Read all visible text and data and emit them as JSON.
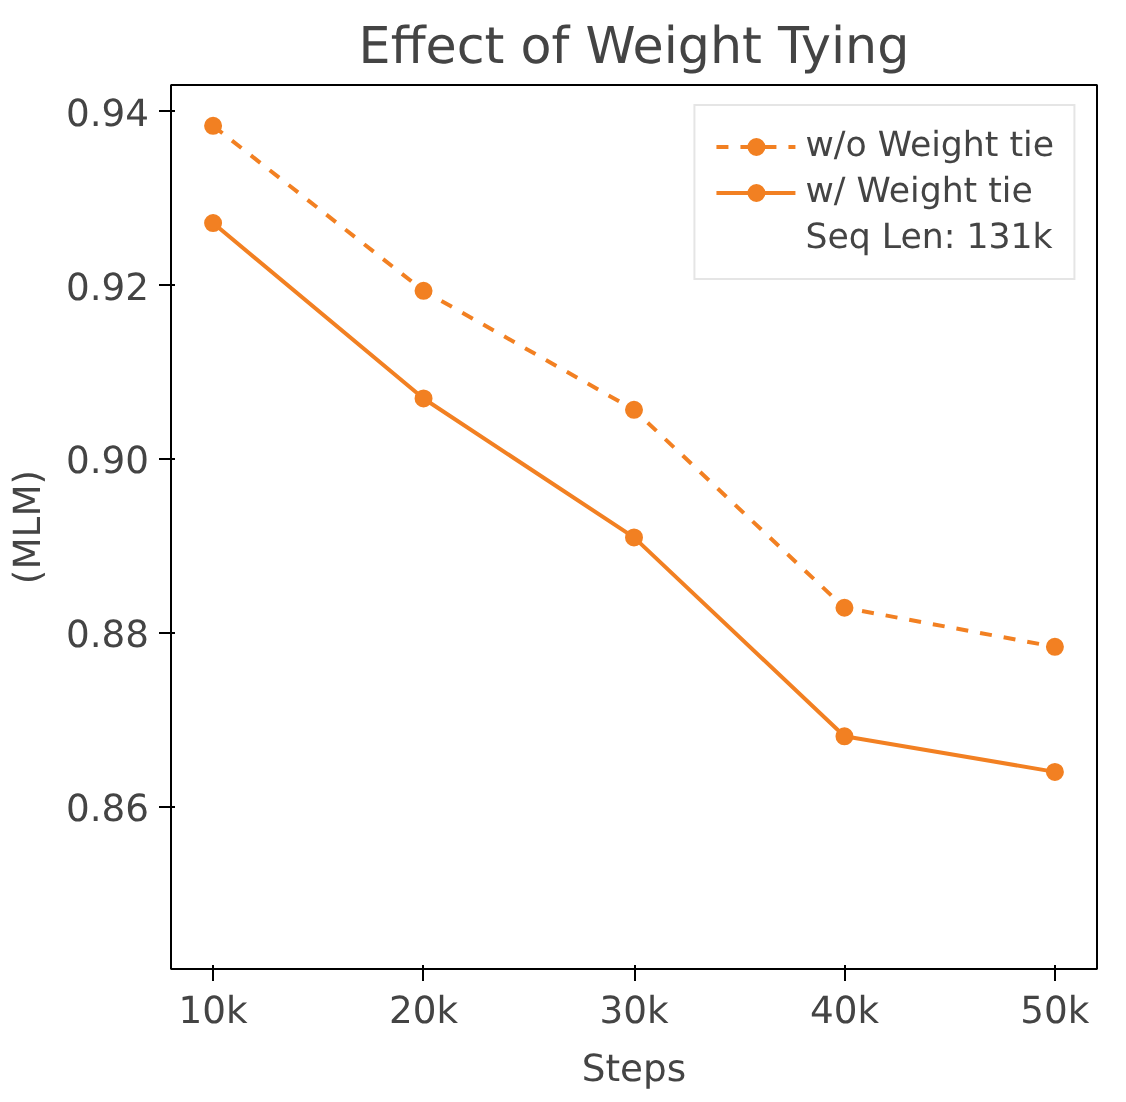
{
  "chart_data": {
    "type": "line",
    "title": "Effect of Weight Tying",
    "xlabel": "Steps",
    "ylabel": "(MLM)",
    "x": [
      10000,
      20000,
      30000,
      40000,
      50000
    ],
    "series": [
      {
        "name": "w/o Weight tie",
        "color": "#f28022",
        "values": [
          0.9384,
          0.9194,
          0.9057,
          0.8829,
          0.8784
        ],
        "line_style": "dashed"
      },
      {
        "name": "w/ Weight tie",
        "color": "#f28022",
        "values": [
          0.9272,
          0.907,
          0.891,
          0.8681,
          0.864
        ],
        "line_style": "solid"
      }
    ],
    "annotations": [
      "Seq Len: 131k"
    ],
    "xlim": [
      8000,
      52000
    ],
    "ylim": [
      0.8413,
      0.9431
    ],
    "xticks": [
      {
        "value": 10000,
        "label": "10k"
      },
      {
        "value": 20000,
        "label": "20k"
      },
      {
        "value": 30000,
        "label": "30k"
      },
      {
        "value": 40000,
        "label": "40k"
      },
      {
        "value": 50000,
        "label": "50k"
      }
    ],
    "yticks": [
      {
        "value": 0.86,
        "label": "0.86"
      },
      {
        "value": 0.88,
        "label": "0.88"
      },
      {
        "value": 0.9,
        "label": "0.90"
      },
      {
        "value": 0.92,
        "label": "0.92"
      },
      {
        "value": 0.94,
        "label": "0.94"
      }
    ],
    "marker": "circle",
    "grid": false,
    "legend": "top right"
  }
}
